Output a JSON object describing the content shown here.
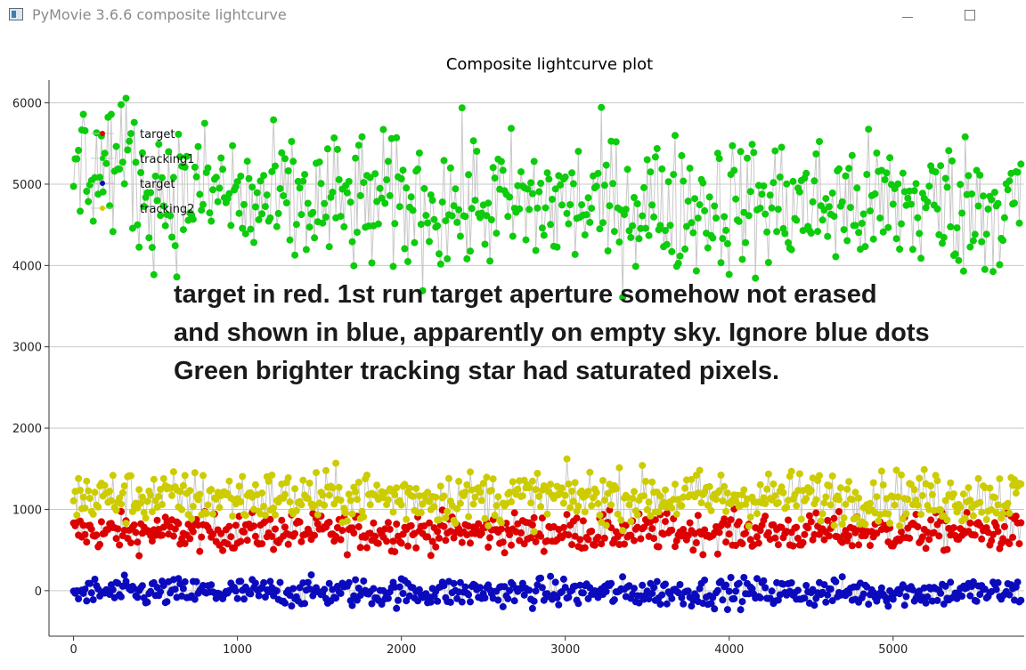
{
  "window": {
    "title": "PyMovie 3.6.6 composite lightcurve",
    "minimize_icon": "minimize-icon",
    "maximize_icon": "maximize-icon"
  },
  "chart_data": {
    "type": "scatter",
    "title": "Composite lightcurve plot",
    "xlabel": "",
    "ylabel": "",
    "xlim": [
      -150,
      5800
    ],
    "ylim": [
      -560,
      6280
    ],
    "x_ticks": [
      0,
      1000,
      2000,
      3000,
      4000,
      5000
    ],
    "y_ticks": [
      0,
      1000,
      2000,
      3000,
      4000,
      5000,
      6000
    ],
    "grid": "horizontal",
    "legend_position": "top-left",
    "n_points": 5780,
    "series": [
      {
        "name": "target",
        "color": "#dd0000",
        "mean": 720,
        "spread": 110,
        "connected_by": "#c8c8c8"
      },
      {
        "name": "tracking1",
        "color": "#0ccc0c",
        "mean": 4750,
        "spread": 420,
        "connected_by": "#c8c8c8"
      },
      {
        "name": "target",
        "color": "#0b0bbd",
        "mean": -20,
        "spread": 85,
        "connected_by": "#c8c8c8"
      },
      {
        "name": "tracking2",
        "color": "#cccc00",
        "mean": 1150,
        "spread": 160,
        "connected_by": "#c8c8c8"
      }
    ],
    "annotation": [
      "target in red. 1st run target aperture somehow not erased",
      "and shown in blue, apparently on empty sky. Ignore blue dots",
      "Green brighter tracking star had saturated pixels."
    ]
  }
}
